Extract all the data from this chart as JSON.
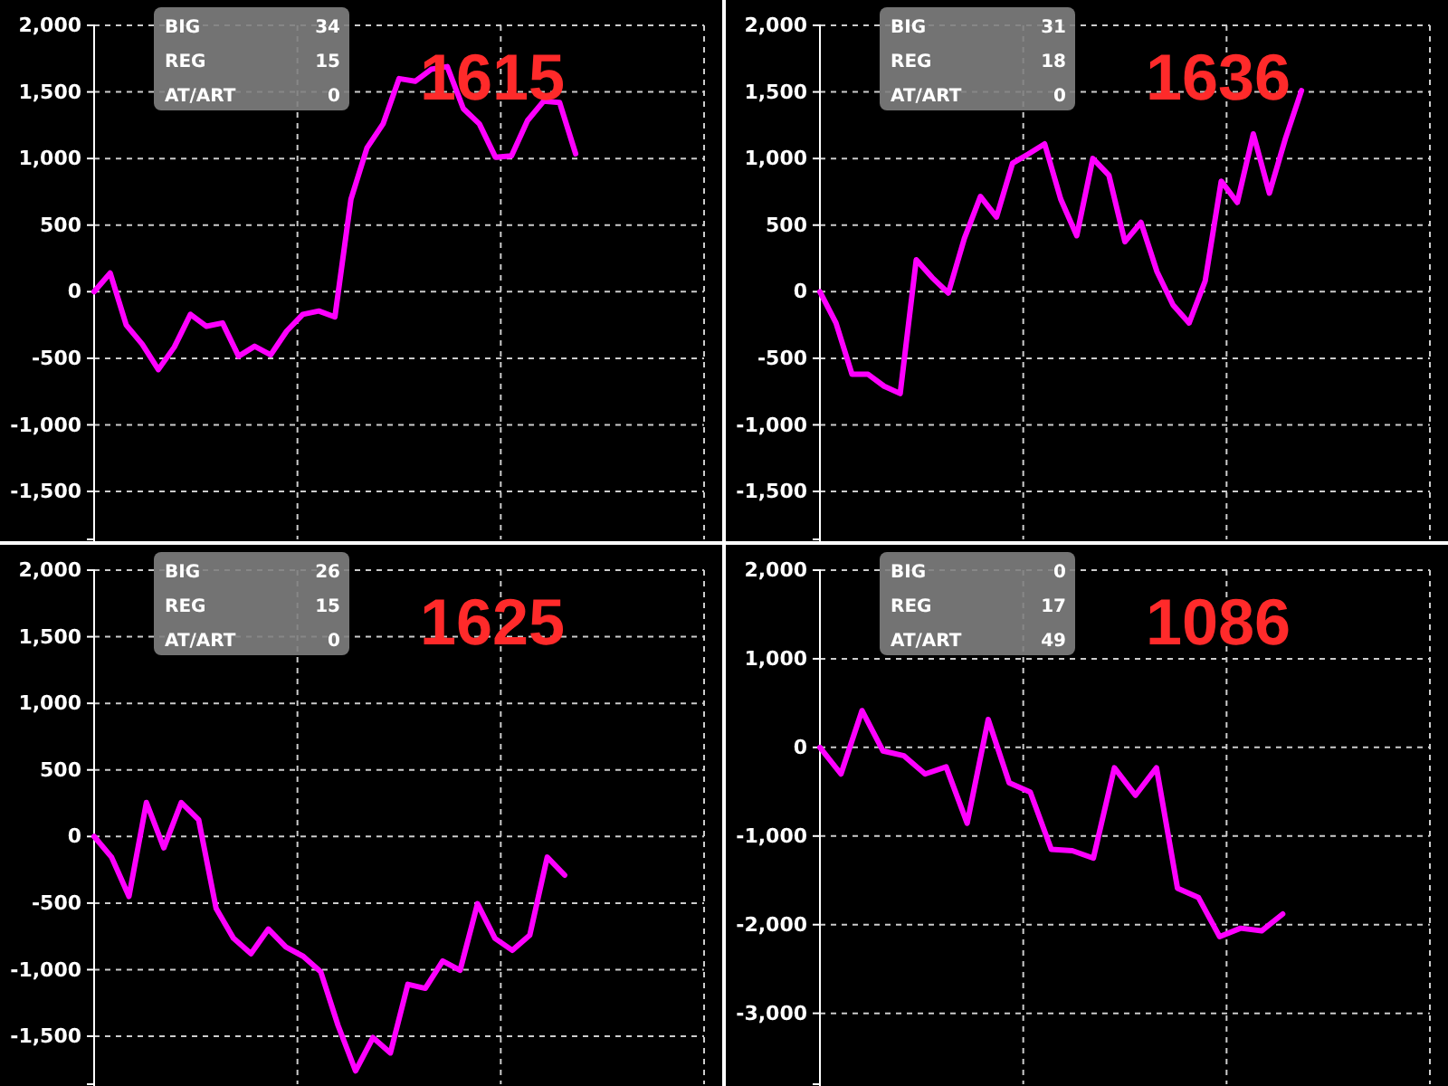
{
  "chart_data": [
    {
      "type": "line",
      "title": "1615",
      "color": "#ff00ff",
      "categories": [
        null,
        null,
        null,
        null,
        null,
        null,
        null,
        null,
        null,
        null,
        null,
        null,
        null,
        null,
        null,
        null,
        null,
        null,
        null,
        null,
        null,
        null,
        null,
        null,
        null,
        null,
        null,
        null,
        null,
        null,
        null,
        null,
        null,
        null,
        null,
        null,
        null,
        null,
        null
      ],
      "ylim": [
        -1860,
        2000
      ],
      "yticks": [
        {
          "value": 2000,
          "label": "2,000"
        },
        {
          "value": 1500,
          "label": "1,500"
        },
        {
          "value": 1000,
          "label": "1,000"
        },
        500,
        0,
        -500,
        {
          "value": -1000,
          "label": "-1,000"
        },
        {
          "value": -1500,
          "label": "-1,500"
        }
      ],
      "grid": true,
      "tick_labels": "y",
      "annotations": [
        "BIG 34",
        "REG 15",
        "AT/ART 0"
      ],
      "values": [
        0,
        140,
        -250,
        -395,
        -585,
        -415,
        -170,
        -260,
        -235,
        -485,
        -410,
        -475,
        -295,
        -170,
        -145,
        -190,
        695,
        1080,
        1260,
        1600,
        1580,
        1670,
        1690,
        1375,
        1260,
        1010,
        1020,
        1285,
        1430,
        1420,
        1035,
        null,
        null,
        null,
        null,
        null,
        null,
        null,
        null
      ]
    },
    {
      "type": "line",
      "title": "1636",
      "color": "#ff00ff",
      "categories": [
        null,
        null,
        null,
        null,
        null,
        null,
        null,
        null,
        null,
        null,
        null,
        null,
        null,
        null,
        null,
        null,
        null,
        null,
        null,
        null,
        null,
        null,
        null,
        null,
        null,
        null,
        null,
        null,
        null,
        null,
        null,
        null,
        null,
        null,
        null,
        null,
        null,
        null,
        null
      ],
      "ylim": [
        -1860,
        2000
      ],
      "yticks": [
        {
          "value": 2000,
          "label": "2,000"
        },
        {
          "value": 1500,
          "label": "1,500"
        },
        {
          "value": 1000,
          "label": "1,000"
        },
        500,
        0,
        -500,
        {
          "value": -1000,
          "label": "-1,000"
        },
        {
          "value": -1500,
          "label": "-1,500"
        }
      ],
      "grid": true,
      "tick_labels": "y",
      "annotations": [
        "BIG 31",
        "REG 18",
        "AT/ART 0"
      ],
      "values": [
        0,
        -235,
        -620,
        -620,
        -710,
        -765,
        240,
        105,
        -10,
        400,
        715,
        560,
        965,
        1035,
        1110,
        695,
        420,
        1000,
        875,
        375,
        520,
        150,
        -100,
        -235,
        80,
        830,
        670,
        1185,
        740,
        1150,
        1510,
        null,
        null,
        null,
        null,
        null,
        null,
        null,
        null
      ]
    },
    {
      "type": "line",
      "title": "1625",
      "color": "#ff00ff",
      "categories": [
        null,
        null,
        null,
        null,
        null,
        null,
        null,
        null,
        null,
        null,
        null,
        null,
        null,
        null,
        null,
        null,
        null,
        null,
        null,
        null,
        null,
        null,
        null,
        null,
        null,
        null,
        null,
        null,
        null,
        null,
        null,
        null,
        null,
        null,
        null,
        null
      ],
      "ylim": [
        -1860,
        2000
      ],
      "yticks": [
        {
          "value": 2000,
          "label": "2,000"
        },
        {
          "value": 1500,
          "label": "1,500"
        },
        {
          "value": 1000,
          "label": "1,000"
        },
        500,
        0,
        -500,
        {
          "value": -1000,
          "label": "-1,000"
        },
        {
          "value": -1500,
          "label": "-1,500"
        }
      ],
      "grid": true,
      "tick_labels": "y",
      "annotations": [
        "BIG 26",
        "REG 15",
        "AT/ART 0"
      ],
      "values": [
        0,
        -155,
        -450,
        255,
        -85,
        255,
        125,
        -540,
        -765,
        -880,
        -695,
        -830,
        -900,
        -1015,
        -1420,
        -1760,
        -1510,
        -1625,
        -1110,
        -1140,
        -935,
        -1005,
        -505,
        -765,
        -855,
        -740,
        -155,
        -290,
        null,
        null,
        null,
        null,
        null,
        null,
        null,
        null
      ]
    },
    {
      "type": "line",
      "title": "1086",
      "color": "#ff00ff",
      "categories": [
        null,
        null,
        null,
        null,
        null,
        null,
        null,
        null,
        null,
        null,
        null,
        null,
        null,
        null,
        null,
        null,
        null,
        null,
        null,
        null,
        null,
        null,
        null,
        null,
        null,
        null,
        null,
        null,
        null,
        null
      ],
      "ylim": [
        -3800,
        2000
      ],
      "yticks": [
        {
          "value": 2000,
          "label": "2,000"
        },
        {
          "value": 1000,
          "label": "1,000"
        },
        0,
        {
          "value": -1000,
          "label": "-1,000"
        },
        {
          "value": -2000,
          "label": "-2,000"
        },
        {
          "value": -3000,
          "label": "-3,000"
        }
      ],
      "grid": true,
      "tick_labels": "y",
      "annotations": [
        "BIG 0",
        "REG 17",
        "AT/ART 49"
      ],
      "values": [
        0,
        -300,
        415,
        -40,
        -95,
        -300,
        -220,
        -855,
        315,
        -400,
        -505,
        -1150,
        -1165,
        -1250,
        -230,
        -540,
        -230,
        -1590,
        -1695,
        -2135,
        -2040,
        -2070,
        -1880,
        null,
        null,
        null,
        null,
        null,
        null,
        null
      ]
    }
  ]
}
